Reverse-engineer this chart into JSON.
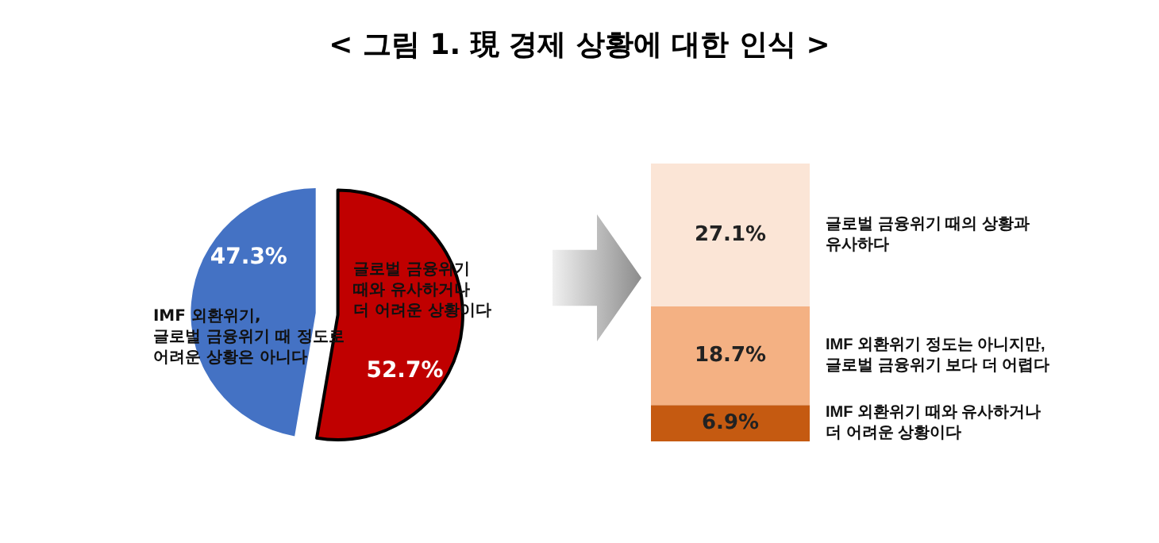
{
  "chart_data": [
    {
      "type": "pie",
      "title": "< 그림 1. 現 경제 상황에 대한 인식 >",
      "categories": [
        "글로벌 금융위기\n때와 유사하거나\n더 어려운 상황이다",
        "IMF 외환위기,\n글로벌 금융위기 때 정도로\n어려운 상황은 아니다"
      ],
      "values": [
        52.7,
        47.3
      ],
      "value_labels": [
        "52.7%",
        "47.3%"
      ],
      "colors": [
        "#c00000",
        "#4472c4"
      ],
      "legend": false
    },
    {
      "type": "bar",
      "stacked": true,
      "categories": [
        null
      ],
      "legend": false,
      "series": [
        {
          "name": "IMF 외환위기 때와 유사하거나\n더 어려운 상황이다",
          "color": "#c55a11",
          "values": [
            6.9
          ],
          "value_labels": [
            "6.9%"
          ]
        },
        {
          "name": "IMF 외환위기 정도는 아니지만,\n글로벌 금융위기 보다 더 어렵다",
          "color": "#f4b183",
          "values": [
            18.7
          ],
          "value_labels": [
            "18.7%"
          ]
        },
        {
          "name": "글로벌 금융위기 때의 상황과\n유사하다",
          "color": "#fbe5d6",
          "values": [
            27.1
          ],
          "value_labels": [
            "27.1%"
          ]
        }
      ]
    }
  ]
}
